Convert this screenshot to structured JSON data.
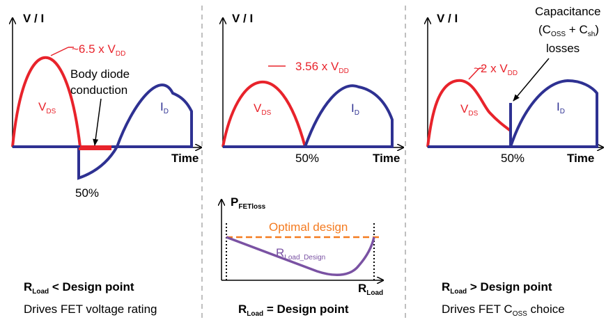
{
  "colors": {
    "vds": "#e8232b",
    "id": "#2e3192",
    "optimal": "#f47b20",
    "loss_curve": "#7a52a3",
    "divider": "#bfbfbf"
  },
  "panels": [
    {
      "axis_y": "V / I",
      "axis_x": "Time",
      "vds_main": "V",
      "vds_sub": "DS",
      "id_main": "I",
      "id_sub": "D",
      "peak_label": {
        "prefix": "~6.5 x V",
        "sub": "DD"
      },
      "annotation_line1": "Body diode",
      "annotation_line2": "conduction",
      "half_label": "50%",
      "caption_r": "R",
      "caption_r_sub": "Load",
      "caption_rest": " < Design point",
      "subcaption": "Drives FET voltage rating"
    },
    {
      "axis_y": "V / I",
      "axis_x": "Time",
      "vds_main": "V",
      "vds_sub": "DS",
      "id_main": "I",
      "id_sub": "D",
      "peak_label": {
        "prefix": "3.56 x V",
        "sub": "DD"
      },
      "half_label": "50%"
    },
    {
      "axis_y": "V / I",
      "axis_x": "Time",
      "vds_main": "V",
      "vds_sub": "DS",
      "id_main": "I",
      "id_sub": "D",
      "peak_label": {
        "prefix": "~2 x V",
        "sub": "DD"
      },
      "cap_line1": "Capacitance",
      "cap_line2_a": "(C",
      "cap_line2_sub1": "OSS",
      "cap_line2_b": " + C",
      "cap_line2_sub2": "sh",
      "cap_line2_c": ")",
      "cap_line3": "losses",
      "half_label": "50%",
      "caption_r": "R",
      "caption_r_sub": "Load",
      "caption_rest": " > Design point",
      "subcaption_a": "Drives FET C",
      "subcaption_sub": "OSS",
      "subcaption_b": " choice"
    }
  ],
  "loss_plot": {
    "y_label_main": "P",
    "y_label_sub": "FETloss",
    "x_label_main": "R",
    "x_label_sub": "Load",
    "optimal_label": "Optimal design",
    "curve_main": "R",
    "curve_sub": "Load_Design",
    "caption_r": "R",
    "caption_r_sub": "Load",
    "caption_rest": " = Design point"
  }
}
